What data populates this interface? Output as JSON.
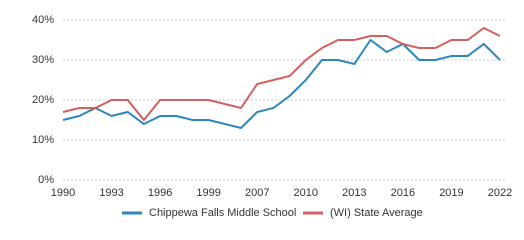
{
  "chart_data": {
    "type": "line",
    "categories": [
      "1990",
      null,
      null,
      "1993",
      null,
      null,
      "1996",
      null,
      null,
      "1999",
      null,
      null,
      "2007",
      null,
      null,
      "2010",
      null,
      null,
      "2013",
      null,
      null,
      "2016",
      null,
      null,
      "2019",
      null,
      null,
      "2022"
    ],
    "series": [
      {
        "name": "Chippewa Falls Middle School",
        "color": "#2b87bd",
        "values": [
          15,
          16,
          18,
          16,
          17,
          14,
          16,
          16,
          15,
          15,
          14,
          13,
          17,
          18,
          21,
          25,
          30,
          30,
          29,
          35,
          32,
          34,
          30,
          30,
          31,
          31,
          34,
          30
        ]
      },
      {
        "name": "(WI) State Average",
        "color": "#d2605f",
        "values": [
          17,
          18,
          18,
          20,
          20,
          15,
          20,
          20,
          20,
          20,
          19,
          18,
          24,
          25,
          26,
          30,
          33,
          35,
          35,
          36,
          36,
          34,
          33,
          33,
          35,
          35,
          38,
          36
        ]
      }
    ],
    "ylim": [
      0,
      40
    ],
    "yticks": [
      {
        "value": 0,
        "label": "0%"
      },
      {
        "value": 10,
        "label": "10%"
      },
      {
        "value": 20,
        "label": "20%"
      },
      {
        "value": 30,
        "label": "30%"
      },
      {
        "value": 40,
        "label": "40%"
      }
    ],
    "grid": true,
    "legend": "bottom"
  }
}
